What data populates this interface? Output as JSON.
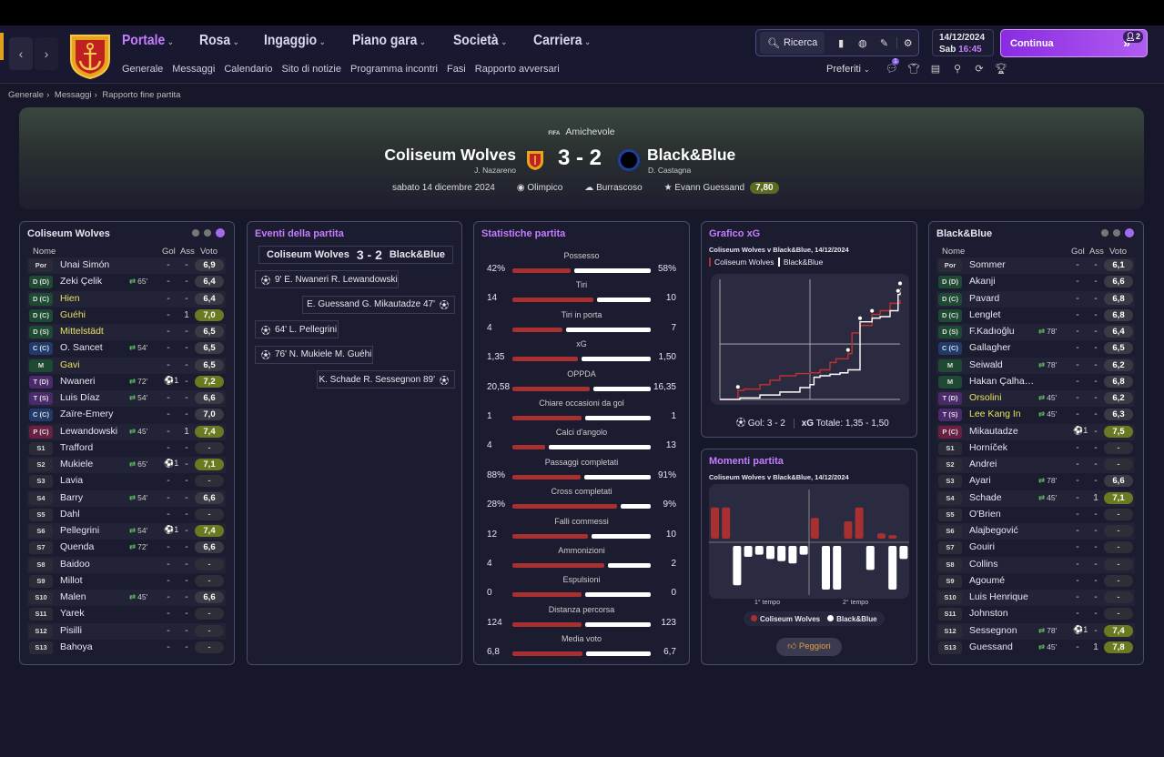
{
  "header": {
    "menu": [
      {
        "label": "Portale",
        "active": true
      },
      {
        "label": "Rosa"
      },
      {
        "label": "Ingaggio"
      },
      {
        "label": "Piano gara"
      },
      {
        "label": "Società"
      },
      {
        "label": "Carriera"
      }
    ],
    "submenu": [
      "Generale",
      "Messaggi",
      "Calendario",
      "Sito di notizie",
      "Programma incontri",
      "Fasi",
      "Rapporto avversari"
    ],
    "search_label": "Ricerca",
    "date": "14/12/2024",
    "day": "Sab",
    "time": "16:45",
    "continue_label": "Continua",
    "continue_badge": "2",
    "preferiti_label": "Preferiti",
    "notif_badge": "1"
  },
  "breadcrumb": [
    "Generale",
    "Messaggi",
    "Rapporto fine partita"
  ],
  "match": {
    "competition": "Amichevole",
    "competition_logo": "FIFA",
    "home": "Coliseum Wolves",
    "home_coach": "J. Nazareno",
    "score": "3 - 2",
    "away": "Black&Blue",
    "away_coach": "D. Castagna",
    "date": "sabato 14 dicembre 2024",
    "stadium": "Olimpico",
    "weather": "Burrascoso",
    "potm": "Evann Guessand",
    "potm_rating": "7,80"
  },
  "lineup_headers": {
    "name": "Nome",
    "goals": "Gol",
    "assists": "Ass",
    "rating": "Voto"
  },
  "home_lineup": {
    "title": "Coliseum Wolves",
    "players": [
      {
        "pos": "Por",
        "posc": "#2a2a38",
        "name": "Unai Simón",
        "g": "-",
        "a": "-",
        "r": "6,9"
      },
      {
        "pos": "D (D)",
        "posc": "#1e4a34",
        "name": "Zeki Çelik",
        "sub": "65'",
        "g": "-",
        "a": "-",
        "r": "6,4"
      },
      {
        "pos": "D (C)",
        "posc": "#1e4a34",
        "name": "Hien",
        "y": true,
        "g": "-",
        "a": "-",
        "r": "6,4"
      },
      {
        "pos": "D (C)",
        "posc": "#1e4a34",
        "name": "Guéhi",
        "y": true,
        "g": "-",
        "a": "1",
        "r": "7,0",
        "good": true
      },
      {
        "pos": "D (S)",
        "posc": "#1e4a34",
        "name": "Mittelstädt",
        "y": true,
        "g": "-",
        "a": "-",
        "r": "6,5"
      },
      {
        "pos": "C (C)",
        "posc": "#223a6a",
        "name": "O. Sancet",
        "sub": "54'",
        "g": "-",
        "a": "-",
        "r": "6,5"
      },
      {
        "pos": "M",
        "posc": "#1e4a34",
        "name": "Gavi",
        "y": true,
        "g": "-",
        "a": "-",
        "r": "6,5"
      },
      {
        "pos": "T (D)",
        "posc": "#4a2a6a",
        "name": "Nwaneri",
        "sub": "72'",
        "ic": "⚽1",
        "g": "",
        "a": "-",
        "r": "7,2",
        "good": true
      },
      {
        "pos": "T (S)",
        "posc": "#4a2a6a",
        "name": "Luis Díaz",
        "sub": "54'",
        "g": "-",
        "a": "-",
        "r": "6,6"
      },
      {
        "pos": "C (C)",
        "posc": "#223a6a",
        "name": "Zaïre-Emery",
        "g": "-",
        "a": "-",
        "r": "7,0"
      },
      {
        "pos": "P (C)",
        "posc": "#6a2040",
        "name": "Lewandowski",
        "sub": "45'",
        "g": "-",
        "a": "1",
        "r": "7,4",
        "good": true
      },
      {
        "pos": "S1",
        "posc": "#2a2a38",
        "name": "Trafford",
        "g": "-",
        "a": "-",
        "r": "-",
        "none": true
      },
      {
        "pos": "S2",
        "posc": "#2a2a38",
        "name": "Mukiele",
        "sub": "65'",
        "ic": "⚽1",
        "g": "",
        "a": "-",
        "r": "7,1",
        "good": true
      },
      {
        "pos": "S3",
        "posc": "#2a2a38",
        "name": "Lavia",
        "g": "-",
        "a": "-",
        "r": "-",
        "none": true
      },
      {
        "pos": "S4",
        "posc": "#2a2a38",
        "name": "Barry",
        "sub": "54'",
        "g": "-",
        "a": "-",
        "r": "6,6"
      },
      {
        "pos": "S5",
        "posc": "#2a2a38",
        "name": "Dahl",
        "g": "-",
        "a": "-",
        "r": "-",
        "none": true
      },
      {
        "pos": "S6",
        "posc": "#2a2a38",
        "name": "Pellegrini",
        "sub": "54'",
        "ic": "⚽1",
        "g": "",
        "a": "-",
        "r": "7,4",
        "good": true
      },
      {
        "pos": "S7",
        "posc": "#2a2a38",
        "name": "Quenda",
        "sub": "72'",
        "g": "-",
        "a": "-",
        "r": "6,6"
      },
      {
        "pos": "S8",
        "posc": "#2a2a38",
        "name": "Baidoo",
        "g": "-",
        "a": "-",
        "r": "-",
        "none": true
      },
      {
        "pos": "S9",
        "posc": "#2a2a38",
        "name": "Millot",
        "g": "-",
        "a": "-",
        "r": "-",
        "none": true
      },
      {
        "pos": "S10",
        "posc": "#2a2a38",
        "name": "Malen",
        "sub": "45'",
        "g": "-",
        "a": "-",
        "r": "6,6"
      },
      {
        "pos": "S11",
        "posc": "#2a2a38",
        "name": "Yarek",
        "g": "-",
        "a": "-",
        "r": "-",
        "none": true
      },
      {
        "pos": "S12",
        "posc": "#2a2a38",
        "name": "Pisilli",
        "g": "-",
        "a": "-",
        "r": "-",
        "none": true
      },
      {
        "pos": "S13",
        "posc": "#2a2a38",
        "name": "Bahoya",
        "g": "-",
        "a": "-",
        "r": "-",
        "none": true
      }
    ]
  },
  "away_lineup": {
    "title": "Black&Blue",
    "players": [
      {
        "pos": "Por",
        "posc": "#2a2a38",
        "name": "Sommer",
        "g": "-",
        "a": "-",
        "r": "6,1"
      },
      {
        "pos": "D (D)",
        "posc": "#1e4a34",
        "name": "Akanji",
        "g": "-",
        "a": "-",
        "r": "6,6"
      },
      {
        "pos": "D (C)",
        "posc": "#1e4a34",
        "name": "Pavard",
        "g": "-",
        "a": "-",
        "r": "6,8"
      },
      {
        "pos": "D (C)",
        "posc": "#1e4a34",
        "name": "Lenglet",
        "g": "-",
        "a": "-",
        "r": "6,8"
      },
      {
        "pos": "D (S)",
        "posc": "#1e4a34",
        "name": "F.Kadıoğlu",
        "sub": "78'",
        "g": "-",
        "a": "-",
        "r": "6,4"
      },
      {
        "pos": "C (C)",
        "posc": "#223a6a",
        "name": "Gallagher",
        "g": "-",
        "a": "-",
        "r": "6,5"
      },
      {
        "pos": "M",
        "posc": "#1e4a34",
        "name": "Seiwald",
        "sub": "78'",
        "g": "-",
        "a": "-",
        "r": "6,2"
      },
      {
        "pos": "M",
        "posc": "#1e4a34",
        "name": "Hakan Çalha…",
        "g": "-",
        "a": "-",
        "r": "6,8"
      },
      {
        "pos": "T (D)",
        "posc": "#4a2a6a",
        "name": "Orsolini",
        "y": true,
        "sub": "45'",
        "g": "-",
        "a": "-",
        "r": "6,2"
      },
      {
        "pos": "T (S)",
        "posc": "#4a2a6a",
        "name": "Lee Kang In",
        "y": true,
        "sub": "45'",
        "g": "-",
        "a": "-",
        "r": "6,3"
      },
      {
        "pos": "P (C)",
        "posc": "#6a2040",
        "name": "Mikautadze",
        "ic": "⚽1",
        "g": "",
        "a": "-",
        "r": "7,5",
        "good": true
      },
      {
        "pos": "S1",
        "posc": "#2a2a38",
        "name": "Horníček",
        "g": "-",
        "a": "-",
        "r": "-",
        "none": true
      },
      {
        "pos": "S2",
        "posc": "#2a2a38",
        "name": "Andrei",
        "g": "-",
        "a": "-",
        "r": "-",
        "none": true
      },
      {
        "pos": "S3",
        "posc": "#2a2a38",
        "name": "Ayari",
        "sub": "78'",
        "g": "-",
        "a": "-",
        "r": "6,6"
      },
      {
        "pos": "S4",
        "posc": "#2a2a38",
        "name": "Schade",
        "sub": "45'",
        "g": "-",
        "a": "1",
        "r": "7,1",
        "good": true
      },
      {
        "pos": "S5",
        "posc": "#2a2a38",
        "name": "O'Brien",
        "g": "-",
        "a": "-",
        "r": "-",
        "none": true
      },
      {
        "pos": "S6",
        "posc": "#2a2a38",
        "name": "Alajbegović",
        "g": "-",
        "a": "-",
        "r": "-",
        "none": true
      },
      {
        "pos": "S7",
        "posc": "#2a2a38",
        "name": "Gouiri",
        "g": "-",
        "a": "-",
        "r": "-",
        "none": true
      },
      {
        "pos": "S8",
        "posc": "#2a2a38",
        "name": "Collins",
        "g": "-",
        "a": "-",
        "r": "-",
        "none": true
      },
      {
        "pos": "S9",
        "posc": "#2a2a38",
        "name": "Agoumé",
        "g": "-",
        "a": "-",
        "r": "-",
        "none": true
      },
      {
        "pos": "S10",
        "posc": "#2a2a38",
        "name": "Luis Henrique",
        "g": "-",
        "a": "-",
        "r": "-",
        "none": true
      },
      {
        "pos": "S11",
        "posc": "#2a2a38",
        "name": "Johnston",
        "g": "-",
        "a": "-",
        "r": "-",
        "none": true
      },
      {
        "pos": "S12",
        "posc": "#2a2a38",
        "name": "Sessegnon",
        "sub": "78'",
        "ic": "⚽1",
        "g": "",
        "a": "-",
        "r": "7,4",
        "good": true
      },
      {
        "pos": "S13",
        "posc": "#2a2a38",
        "name": "Guessand",
        "sub": "45'",
        "g": "-",
        "a": "1",
        "r": "7,8",
        "good": true
      }
    ]
  },
  "events": {
    "title": "Eventi della partita",
    "home": "Coliseum Wolves",
    "score": "3 - 2",
    "away": "Black&Blue",
    "items": [
      {
        "side": "home",
        "text": "9'  E. Nwaneri R. Lewandowski"
      },
      {
        "side": "away",
        "text": "E. Guessand G. Mikautadze  47'"
      },
      {
        "side": "home",
        "text": "64'  L. Pellegrini"
      },
      {
        "side": "home",
        "text": "76'  N. Mukiele M. Guéhi"
      },
      {
        "side": "away",
        "text": "K. Schade R. Sessegnon  89'"
      }
    ]
  },
  "stats": {
    "title": "Statistiche partita",
    "items": [
      {
        "label": "Possesso",
        "h": "42%",
        "a": "58%",
        "hv": 42,
        "av": 58
      },
      {
        "label": "Tiri",
        "h": "14",
        "a": "10",
        "hv": 14,
        "av": 10
      },
      {
        "label": "Tiri in porta",
        "h": "4",
        "a": "7",
        "hv": 4,
        "av": 7
      },
      {
        "label": "xG",
        "h": "1,35",
        "a": "1,50",
        "hv": 1.35,
        "av": 1.5
      },
      {
        "label": "OPPDA",
        "h": "20,58",
        "a": "16,35",
        "hv": 20.58,
        "av": 16.35
      },
      {
        "label": "Chiare occasioni da gol",
        "h": "1",
        "a": "1",
        "hv": 1,
        "av": 1
      },
      {
        "label": "Calci d'angolo",
        "h": "4",
        "a": "13",
        "hv": 4,
        "av": 13
      },
      {
        "label": "Passaggi completati",
        "h": "88%",
        "a": "91%",
        "hv": 88,
        "av": 91
      },
      {
        "label": "Cross completati",
        "h": "28%",
        "a": "9%",
        "hv": 28,
        "av": 9
      },
      {
        "label": "Falli commessi",
        "h": "12",
        "a": "10",
        "hv": 12,
        "av": 10
      },
      {
        "label": "Ammonizioni",
        "h": "4",
        "a": "2",
        "hv": 4,
        "av": 2
      },
      {
        "label": "Espulsioni",
        "h": "0",
        "a": "0",
        "hv": 0,
        "av": 0
      },
      {
        "label": "Distanza percorsa",
        "h": "124",
        "a": "123",
        "hv": 124,
        "av": 123
      },
      {
        "label": "Media voto",
        "h": "6,8",
        "a": "6,7",
        "hv": 6.8,
        "av": 6.7
      }
    ]
  },
  "xg": {
    "title": "Grafico xG",
    "subtitle": "Coliseum Wolves v Black&Blue, 14/12/2024",
    "legend_home": "Coliseum Wolves",
    "legend_away": "Black&Blue",
    "footer_goals": "Gol: 3 - 2",
    "footer_xg_label": "xG",
    "footer_xg": "Totale: 1,35 - 1,50"
  },
  "momentum": {
    "title": "Momenti partita",
    "subtitle": "Coliseum Wolves v Black&Blue, 14/12/2024",
    "half1": "1° tempo",
    "half2": "2° tempo",
    "legend_home": "Coliseum Wolves",
    "legend_away": "Black&Blue",
    "worst_label": "Peggiori"
  },
  "colors": {
    "accent": "#c57dff",
    "home": "#a83030",
    "away": "#ffffff",
    "good_rating": "#6a7a20"
  },
  "chart_data": [
    {
      "type": "line",
      "title": "Grafico xG",
      "series": [
        {
          "name": "Coliseum Wolves",
          "x": [
            0,
            9,
            12,
            20,
            25,
            30,
            38,
            45,
            50,
            55,
            58,
            64,
            66,
            70,
            76,
            80,
            85,
            90
          ],
          "y": [
            0,
            0.12,
            0.14,
            0.2,
            0.26,
            0.32,
            0.35,
            0.36,
            0.4,
            0.5,
            0.55,
            0.62,
            0.9,
            1.0,
            1.15,
            1.2,
            1.3,
            1.35
          ]
        },
        {
          "name": "Black&Blue",
          "x": [
            0,
            10,
            20,
            30,
            40,
            45,
            47,
            50,
            55,
            60,
            64,
            70,
            76,
            80,
            85,
            89,
            90
          ],
          "y": [
            0,
            0.02,
            0.06,
            0.1,
            0.16,
            0.2,
            0.3,
            0.32,
            0.34,
            0.36,
            0.4,
            1.05,
            1.1,
            1.12,
            1.2,
            1.42,
            1.5
          ]
        }
      ]
    },
    {
      "type": "bar",
      "title": "Momenti partita",
      "series": [
        {
          "name": "Coliseum Wolves",
          "values": [
            0.9,
            0.9,
            0,
            0,
            0,
            0,
            0,
            0,
            0,
            0.6,
            0,
            0,
            0.5,
            0.9,
            0,
            0.15,
            0.1,
            0
          ]
        },
        {
          "name": "Black&Blue",
          "values": [
            0,
            0,
            0.9,
            0.25,
            0.2,
            0.3,
            0.35,
            0.4,
            0.2,
            0,
            1.0,
            1.0,
            0,
            0,
            0.55,
            0,
            1.0,
            0.3
          ]
        }
      ]
    }
  ]
}
